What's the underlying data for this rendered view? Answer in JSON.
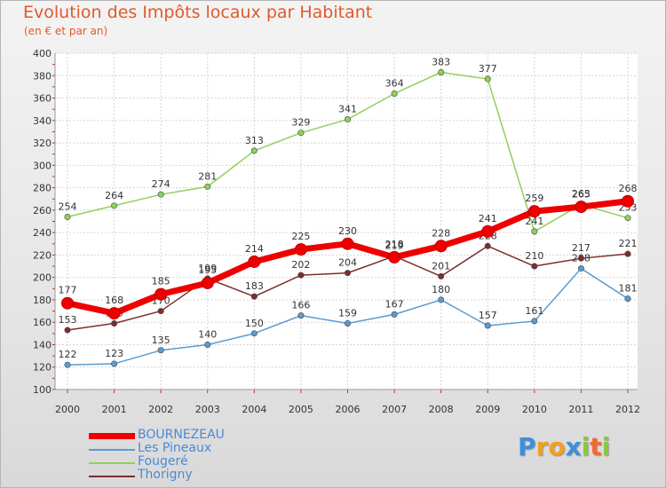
{
  "header": {
    "title": "Evolution des Impôts locaux par Habitant",
    "subtitle": "(en € et par an)"
  },
  "logo": {
    "text": "Proxiti",
    "letters": [
      "P",
      "r",
      "o",
      "x",
      "i",
      "t",
      "i"
    ],
    "colors": [
      "#3f8fd8",
      "#f0a020",
      "#f0a020",
      "#3f8fd8",
      "#8cc640",
      "#f06a30",
      "#8cc640"
    ]
  },
  "chart_data": {
    "type": "line",
    "title": "Evolution des Impôts locaux par Habitant",
    "subtitle": "(en € et par an)",
    "xlabel": "",
    "ylabel": "",
    "ylim": [
      100,
      400
    ],
    "ytick_step": 20,
    "grid": true,
    "legend_position": "bottom-left",
    "categories": [
      "2000",
      "2001",
      "2002",
      "2003",
      "2004",
      "2005",
      "2006",
      "2007",
      "2008",
      "2009",
      "2010",
      "2011",
      "2012"
    ],
    "series": [
      {
        "name": "Les Pineaux",
        "color": "#5b9bd0",
        "values": [
          122,
          123,
          135,
          140,
          150,
          166,
          159,
          167,
          180,
          157,
          161,
          208,
          181
        ],
        "labels": [
          "122",
          "123",
          "135",
          "140",
          "150",
          "166",
          "159",
          "167",
          "180",
          "157",
          "161",
          "208",
          "181"
        ]
      },
      {
        "name": "Fougeré",
        "color": "#8fd05a",
        "values": [
          254,
          264,
          274,
          281,
          313,
          329,
          341,
          364,
          383,
          377,
          241,
          265,
          253
        ],
        "labels": [
          "254",
          "264",
          "274",
          "281",
          "313",
          "329",
          "341",
          "364",
          "383",
          "377",
          "241",
          "265",
          "253"
        ]
      },
      {
        "name": "Thorigny",
        "color": "#7a2e2e",
        "values": [
          153,
          159,
          170,
          199,
          183,
          202,
          204,
          219,
          201,
          228,
          210,
          217,
          221
        ],
        "labels": [
          "153",
          "159",
          "170",
          "199",
          "183",
          "202",
          "204",
          "219",
          "201",
          "228",
          "210",
          "217",
          "221"
        ]
      },
      {
        "name": "BOURNEZEAU",
        "color": "#ee0000",
        "values": [
          177,
          168,
          185,
          195,
          214,
          225,
          230,
          218,
          228,
          241,
          259,
          263,
          268
        ],
        "labels": [
          "177",
          "168",
          "185",
          "195",
          "214",
          "225",
          "230",
          "218",
          "228",
          "241",
          "259",
          "263",
          "268"
        ]
      }
    ],
    "legend": [
      "BOURNEZEAU",
      "Les Pineaux",
      "Fougeré",
      "Thorigny"
    ]
  }
}
